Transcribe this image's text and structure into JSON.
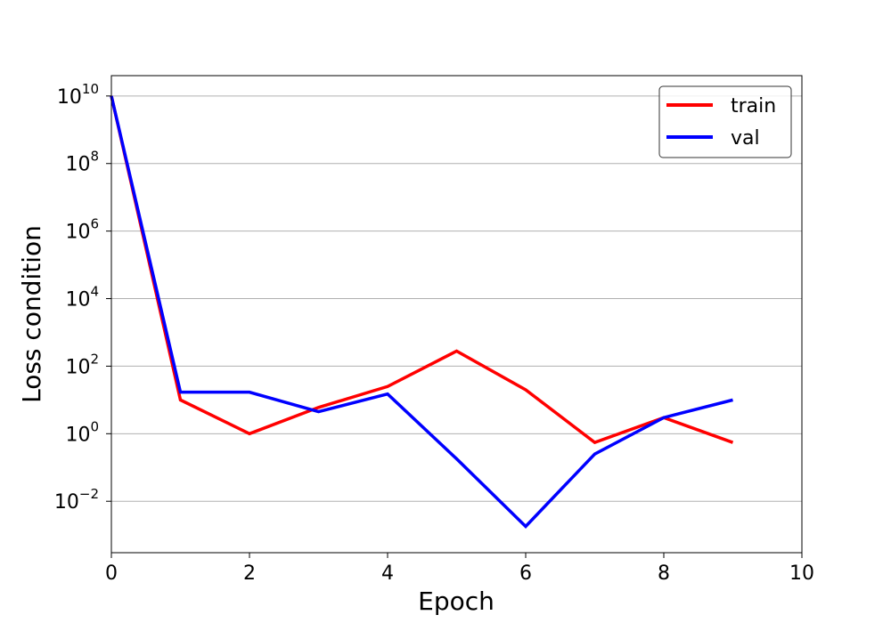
{
  "chart_data": {
    "type": "line",
    "title": "",
    "xlabel": "Epoch",
    "ylabel": "Loss condition",
    "xlim": [
      0,
      10
    ],
    "ylim": [
      0.0003,
      40000000000
    ],
    "yscale": "log",
    "grid": "y-major",
    "legend_position": "top-right",
    "x_ticks": [
      {
        "value": 0,
        "label": "0"
      },
      {
        "value": 2,
        "label": "2"
      },
      {
        "value": 4,
        "label": "4"
      },
      {
        "value": 6,
        "label": "6"
      },
      {
        "value": 8,
        "label": "8"
      },
      {
        "value": 10,
        "label": "10"
      }
    ],
    "y_ticks": [
      {
        "value": 0.01,
        "base": "10",
        "exp": "−2"
      },
      {
        "value": 1,
        "base": "10",
        "exp": "0"
      },
      {
        "value": 100,
        "base": "10",
        "exp": "2"
      },
      {
        "value": 10000,
        "base": "10",
        "exp": "4"
      },
      {
        "value": 1000000,
        "base": "10",
        "exp": "6"
      },
      {
        "value": 100000000,
        "base": "10",
        "exp": "8"
      },
      {
        "value": 10000000000,
        "base": "10",
        "exp": "10"
      }
    ],
    "x": [
      0,
      1,
      2,
      3,
      4,
      5,
      6,
      7,
      8,
      9
    ],
    "series": [
      {
        "name": "train",
        "color": "#ff0000",
        "values": [
          10000000000,
          10,
          1,
          6,
          25,
          280,
          20,
          0.55,
          3,
          0.55
        ]
      },
      {
        "name": "val",
        "color": "#0000ff",
        "values": [
          10000000000,
          17,
          17,
          4.5,
          15,
          0.18,
          0.0018,
          0.25,
          3,
          10
        ]
      }
    ]
  }
}
